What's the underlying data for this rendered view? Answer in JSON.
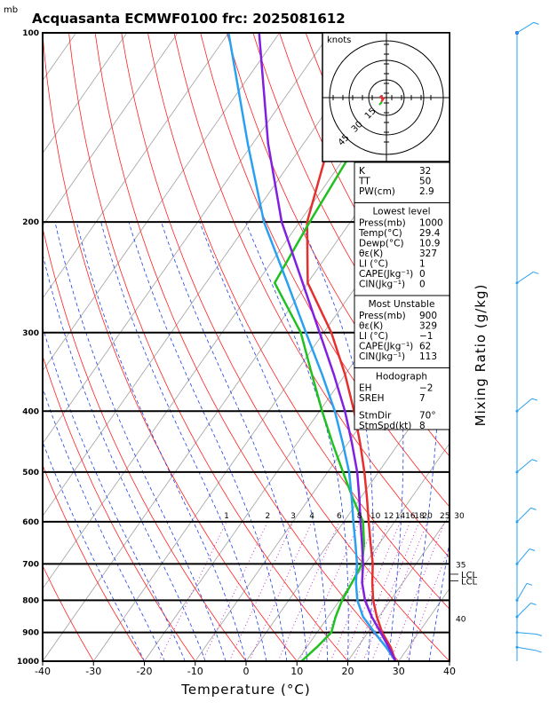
{
  "title": "Acquasanta ECMWF0100 frc: 2025081612",
  "yunit": "mb",
  "xlabel": "Temperature (°C)",
  "mixing_ratio_label": "Mixing Ratio (g/kg)",
  "hodograph": {
    "unit_label": "knots",
    "ring_labels": [
      "15",
      "30",
      "45"
    ]
  },
  "chart_data": {
    "type": "line",
    "title": "Acquasanta ECMWF0100 frc: 2025081612",
    "xlabel": "Temperature (°C)",
    "ylabel": "",
    "x_ticks": [
      "-40",
      "-30",
      "-20",
      "-10",
      "0",
      "10",
      "20",
      "30",
      "40"
    ],
    "y_ticks": [
      "100",
      "200",
      "300",
      "400",
      "500",
      "600",
      "700",
      "800",
      "900",
      "1000"
    ],
    "xlim": [
      -40,
      40
    ],
    "ylim": [
      1000,
      100
    ],
    "y_log_scale": true,
    "mixing_ratio_values": [
      "1",
      "2",
      "3",
      "4",
      "6",
      "8",
      "10",
      "12",
      "14",
      "16",
      "18",
      "20",
      "25",
      "30"
    ],
    "theta_e_labels": [
      "35",
      "40"
    ],
    "lcl_labels": [
      "LCL",
      "LCL"
    ],
    "series": [
      {
        "color": "#e53030",
        "points": [
          [
            1000,
            29.4
          ],
          [
            950,
            26.5
          ],
          [
            900,
            22.8
          ],
          [
            850,
            19.6
          ],
          [
            800,
            16.6
          ],
          [
            750,
            14.0
          ],
          [
            700,
            11.5
          ],
          [
            650,
            8.3
          ],
          [
            600,
            4.9
          ],
          [
            550,
            1.3
          ],
          [
            500,
            -2.8
          ],
          [
            450,
            -7.6
          ],
          [
            400,
            -13.2
          ],
          [
            350,
            -20.0
          ],
          [
            300,
            -28.5
          ],
          [
            250,
            -40.0
          ],
          [
            200,
            -48.5
          ],
          [
            150,
            -55.0
          ],
          [
            100,
            -62.0
          ]
        ]
      },
      {
        "color": "#20c020",
        "points": [
          [
            1000,
            10.9
          ],
          [
            950,
            12.0
          ],
          [
            900,
            12.8
          ],
          [
            850,
            11.5
          ],
          [
            800,
            10.5
          ],
          [
            750,
            10.0
          ],
          [
            700,
            9.4
          ],
          [
            650,
            7.0
          ],
          [
            600,
            3.8
          ],
          [
            550,
            -1.5
          ],
          [
            500,
            -7.0
          ],
          [
            450,
            -13.0
          ],
          [
            400,
            -19.5
          ],
          [
            350,
            -26.5
          ],
          [
            300,
            -34.5
          ],
          [
            250,
            -46.5
          ],
          [
            200,
            -48.0
          ],
          [
            150,
            -49.5
          ],
          [
            100,
            -51.0
          ]
        ]
      },
      {
        "color": "#2aa0f0",
        "points": [
          [
            1000,
            29.4
          ],
          [
            950,
            25.6
          ],
          [
            900,
            21.3
          ],
          [
            850,
            16.9
          ],
          [
            800,
            13.5
          ],
          [
            750,
            10.8
          ],
          [
            700,
            8.4
          ],
          [
            650,
            5.3
          ],
          [
            600,
            1.9
          ],
          [
            550,
            -1.7
          ],
          [
            500,
            -5.8
          ],
          [
            450,
            -11.0
          ],
          [
            400,
            -17.0
          ],
          [
            350,
            -24.5
          ],
          [
            300,
            -33.5
          ],
          [
            250,
            -44.0
          ],
          [
            200,
            -57.0
          ],
          [
            150,
            -71.0
          ],
          [
            100,
            -90.0
          ]
        ]
      },
      {
        "color": "#8020e0",
        "points": [
          [
            1000,
            29.4
          ],
          [
            950,
            26.1
          ],
          [
            900,
            22.5
          ],
          [
            850,
            18.6
          ],
          [
            800,
            15.0
          ],
          [
            750,
            12.0
          ],
          [
            700,
            9.6
          ],
          [
            650,
            6.6
          ],
          [
            600,
            3.3
          ],
          [
            550,
            -0.2
          ],
          [
            500,
            -4.2
          ],
          [
            450,
            -9.2
          ],
          [
            400,
            -15.0
          ],
          [
            350,
            -22.2
          ],
          [
            300,
            -30.8
          ],
          [
            250,
            -41.0
          ],
          [
            200,
            -53.5
          ],
          [
            150,
            -67.0
          ],
          [
            100,
            -84.0
          ]
        ]
      }
    ]
  },
  "indices": {
    "k_label": "K",
    "k_value": "32",
    "tt_label": "TT",
    "tt_value": "50",
    "pw_label": "PW(cm)",
    "pw_value": "2.9",
    "lowest_title": "Lowest level",
    "lowest_rows": [
      {
        "label": "Press(mb)",
        "value": "1000"
      },
      {
        "label": "Temp(°C)",
        "value": "29.4"
      },
      {
        "label": "Dewp(°C)",
        "value": "10.9"
      },
      {
        "label": "θε(K)",
        "value": "327"
      },
      {
        "label": "LI (°C)",
        "value": "1"
      },
      {
        "label": "CAPE(Jkg⁻¹)",
        "value": "0"
      },
      {
        "label": "CIN(Jkg⁻¹)",
        "value": "0"
      }
    ],
    "most_title": "Most Unstable",
    "most_rows": [
      {
        "label": "Press(mb)",
        "value": "900"
      },
      {
        "label": "θε(K)",
        "value": "329"
      },
      {
        "label": "LI (°C)",
        "value": "−1"
      },
      {
        "label": "CAPE(Jkg⁻¹)",
        "value": "62"
      },
      {
        "label": "CIN(Jkg⁻¹)",
        "value": "113"
      }
    ],
    "hodo_title": "Hodograph",
    "hodo_rows": [
      {
        "label": "EH",
        "value": "−2"
      },
      {
        "label": "SREH",
        "value": "7"
      }
    ],
    "storm_rows": [
      {
        "label": "StmDir",
        "value": "70°"
      },
      {
        "label": "StmSpd(kt)",
        "value": "8"
      }
    ]
  },
  "colors": {
    "temp": "#e53030",
    "dew": "#20c020",
    "parcel": "#2aa0f0",
    "virtual": "#8020e0",
    "isotherm": "#a0a0a0",
    "dry_adiabat": "#ff2020",
    "moist_adiabat": "#2040e0",
    "mixing_ratio": "#c020c0",
    "wind": "#2aa0f0"
  }
}
